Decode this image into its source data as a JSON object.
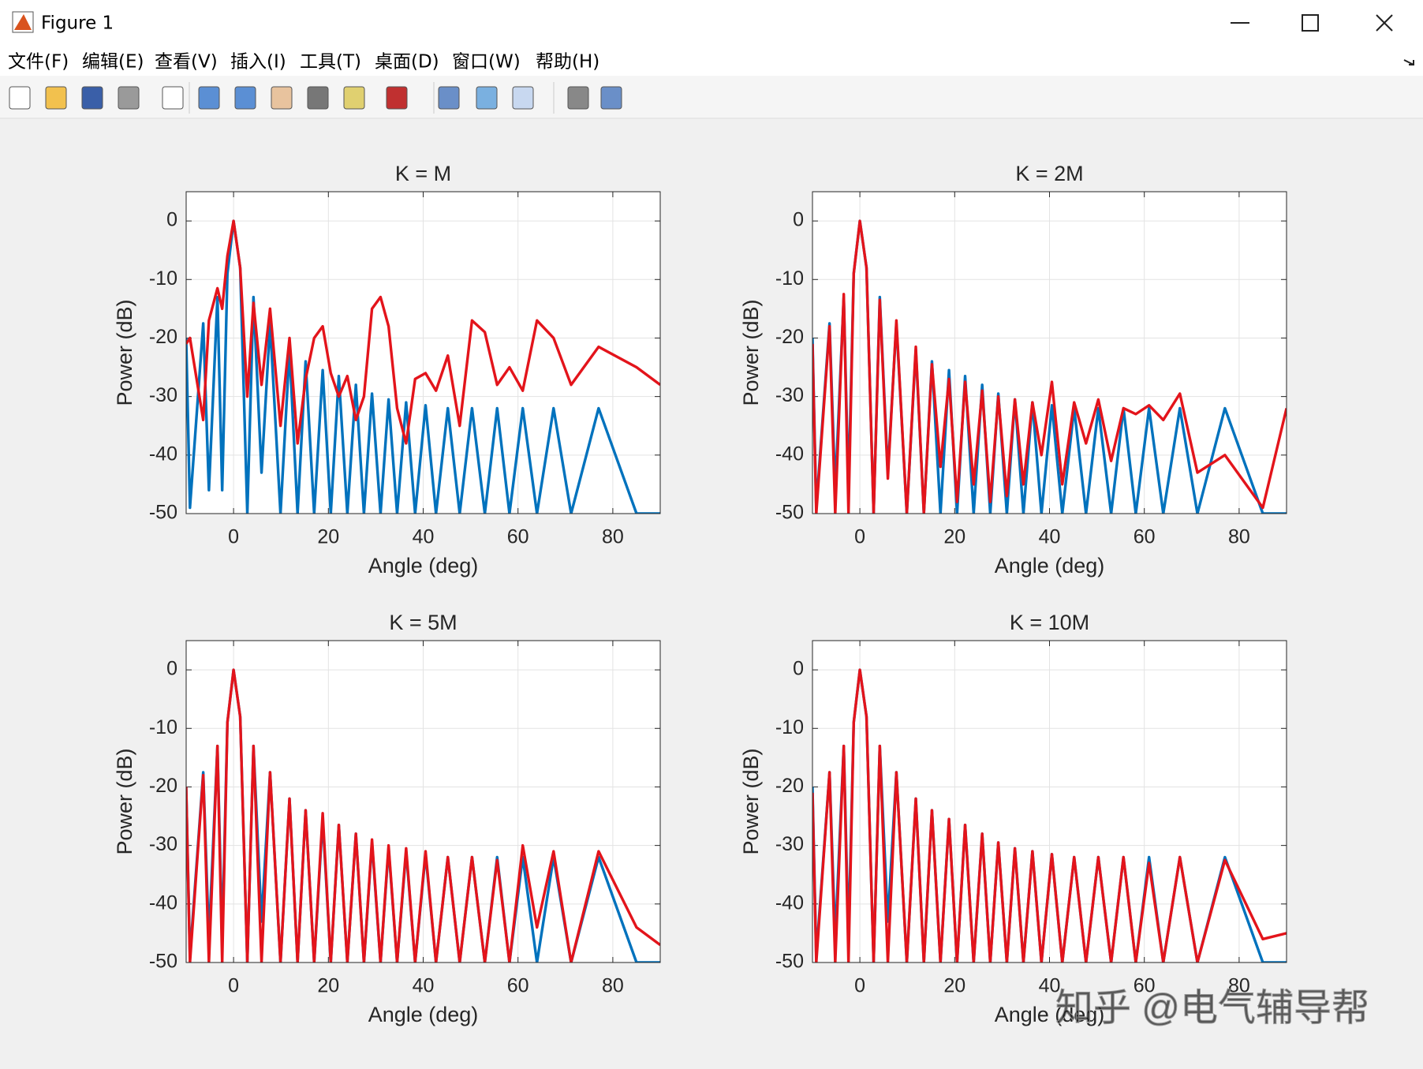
{
  "window": {
    "title": "Figure 1",
    "menu": [
      "文件(F)",
      "编辑(E)",
      "查看(V)",
      "插入(I)",
      "工具(T)",
      "桌面(D)",
      "窗口(W)",
      "帮助(H)"
    ]
  },
  "chart_data": [
    {
      "type": "line",
      "title": "K = M",
      "xlabel": "Angle (deg)",
      "ylabel": "Power (dB)",
      "x": [
        -10,
        -9.2,
        -6.4,
        -5.2,
        -3.4,
        -2.4,
        -1.3,
        0,
        1.4,
        2.9,
        4.2,
        5.9,
        7.7,
        9.9,
        11.8,
        13.5,
        15.2,
        17,
        18.8,
        20.5,
        22.2,
        24,
        25.8,
        27.5,
        29.2,
        31,
        32.7,
        34.5,
        36.4,
        38.3,
        40.5,
        42.7,
        45.2,
        47.7,
        50.3,
        53,
        55.6,
        58.2,
        61,
        64,
        67.5,
        71.2,
        77,
        85,
        90
      ],
      "xlim": [
        -10,
        90
      ],
      "xticks": [
        0,
        20,
        40,
        60,
        80
      ],
      "ylim": [
        -50,
        5
      ],
      "yticks": [
        -50,
        -40,
        -30,
        -20,
        -10,
        0
      ],
      "grid": true,
      "series": [
        {
          "color": "#0072bd",
          "values": [
            -20,
            -49,
            -17.5,
            -46,
            -13,
            -46,
            -9,
            0,
            -8,
            -50,
            -13,
            -43,
            -17.5,
            -50,
            -22,
            -50,
            -24,
            -50,
            -25.5,
            -50,
            -26.5,
            -50,
            -28,
            -50,
            -29.5,
            -50,
            -30.5,
            -50,
            -31,
            -50,
            -31.5,
            -50,
            -32,
            -50,
            -32,
            -50,
            -32,
            -50,
            -32,
            -50,
            -32,
            -50,
            -32,
            -50,
            -50
          ]
        },
        {
          "color": "#e3141b",
          "values": [
            -21,
            -20,
            -34,
            -17,
            -11.5,
            -15,
            -6,
            0,
            -8,
            -30,
            -14,
            -28,
            -15,
            -35,
            -20,
            -38,
            -27,
            -20,
            -18,
            -26,
            -30,
            -26.5,
            -34,
            -30,
            -15,
            -13,
            -18,
            -32,
            -38,
            -27,
            -26,
            -29,
            -23,
            -35,
            -17,
            -19,
            -28,
            -25,
            -29,
            -17,
            -20,
            -28,
            -21.5,
            -25,
            -28
          ]
        }
      ]
    },
    {
      "type": "line",
      "title": "K = 2M",
      "xlabel": "Angle (deg)",
      "ylabel": "Power (dB)",
      "x": [
        -10,
        -9.2,
        -6.4,
        -5.2,
        -3.4,
        -2.4,
        -1.3,
        0,
        1.4,
        2.9,
        4.2,
        5.9,
        7.7,
        9.9,
        11.8,
        13.5,
        15.2,
        17,
        18.8,
        20.5,
        22.2,
        24,
        25.8,
        27.5,
        29.2,
        31,
        32.7,
        34.5,
        36.4,
        38.3,
        40.5,
        42.7,
        45.2,
        47.7,
        50.3,
        53,
        55.6,
        58.2,
        61,
        64,
        67.5,
        71.2,
        77,
        85,
        90
      ],
      "xlim": [
        -10,
        90
      ],
      "xticks": [
        0,
        20,
        40,
        60,
        80
      ],
      "ylim": [
        -50,
        5
      ],
      "yticks": [
        -50,
        -40,
        -30,
        -20,
        -10,
        0
      ],
      "grid": true,
      "series": [
        {
          "color": "#0072bd",
          "values": [
            -20,
            -49,
            -17.5,
            -46,
            -13,
            -46,
            -9,
            0,
            -8,
            -50,
            -13,
            -43,
            -17.5,
            -50,
            -22,
            -50,
            -24,
            -50,
            -25.5,
            -50,
            -26.5,
            -50,
            -28,
            -50,
            -29.5,
            -50,
            -30.5,
            -50,
            -31,
            -50,
            -31.5,
            -50,
            -32,
            -50,
            -32,
            -50,
            -32,
            -50,
            -32,
            -50,
            -32,
            -50,
            -32,
            -50,
            -50
          ]
        },
        {
          "color": "#e3141b",
          "values": [
            -21,
            -50,
            -18,
            -50,
            -12.5,
            -50,
            -9,
            0,
            -8,
            -50,
            -13.5,
            -44,
            -17,
            -50,
            -21.5,
            -50,
            -24.5,
            -42,
            -27,
            -48,
            -27.5,
            -45,
            -29,
            -48,
            -30,
            -47,
            -30.5,
            -45,
            -31,
            -40,
            -27.5,
            -45,
            -31,
            -38,
            -30.5,
            -41,
            -32,
            -33,
            -31.5,
            -34,
            -29.5,
            -43,
            -40,
            -49,
            -32
          ]
        }
      ]
    },
    {
      "type": "line",
      "title": "K = 5M",
      "xlabel": "Angle (deg)",
      "ylabel": "Power (dB)",
      "x": [
        -10,
        -9.2,
        -6.4,
        -5.2,
        -3.4,
        -2.4,
        -1.3,
        0,
        1.4,
        2.9,
        4.2,
        5.9,
        7.7,
        9.9,
        11.8,
        13.5,
        15.2,
        17,
        18.8,
        20.5,
        22.2,
        24,
        25.8,
        27.5,
        29.2,
        31,
        32.7,
        34.5,
        36.4,
        38.3,
        40.5,
        42.7,
        45.2,
        47.7,
        50.3,
        53,
        55.6,
        58.2,
        61,
        64,
        67.5,
        71.2,
        77,
        85,
        90
      ],
      "xlim": [
        -10,
        90
      ],
      "xticks": [
        0,
        20,
        40,
        60,
        80
      ],
      "ylim": [
        -50,
        5
      ],
      "yticks": [
        -50,
        -40,
        -30,
        -20,
        -10,
        0
      ],
      "grid": true,
      "series": [
        {
          "color": "#0072bd",
          "values": [
            -20,
            -49,
            -17.5,
            -46,
            -13,
            -46,
            -9,
            0,
            -8,
            -50,
            -13,
            -43,
            -17.5,
            -50,
            -22,
            -50,
            -24,
            -50,
            -25.5,
            -50,
            -26.5,
            -50,
            -28,
            -50,
            -29.5,
            -50,
            -30.5,
            -50,
            -31,
            -50,
            -31.5,
            -50,
            -32,
            -50,
            -32,
            -50,
            -32,
            -50,
            -32,
            -50,
            -32,
            -50,
            -32,
            -50,
            -50
          ]
        },
        {
          "color": "#e3141b",
          "values": [
            -20,
            -50,
            -18,
            -50,
            -13,
            -50,
            -9,
            0,
            -8,
            -50,
            -13,
            -50,
            -17.5,
            -50,
            -22,
            -50,
            -24,
            -50,
            -24.5,
            -50,
            -26.5,
            -50,
            -28,
            -50,
            -29,
            -50,
            -30,
            -50,
            -30.5,
            -50,
            -31,
            -50,
            -32,
            -50,
            -32,
            -50,
            -32.5,
            -50,
            -30,
            -44,
            -31,
            -50,
            -31,
            -44,
            -47
          ]
        }
      ]
    },
    {
      "type": "line",
      "title": "K = 10M",
      "xlabel": "Angle (deg)",
      "ylabel": "Power (dB)",
      "x": [
        -10,
        -9.2,
        -6.4,
        -5.2,
        -3.4,
        -2.4,
        -1.3,
        0,
        1.4,
        2.9,
        4.2,
        5.9,
        7.7,
        9.9,
        11.8,
        13.5,
        15.2,
        17,
        18.8,
        20.5,
        22.2,
        24,
        25.8,
        27.5,
        29.2,
        31,
        32.7,
        34.5,
        36.4,
        38.3,
        40.5,
        42.7,
        45.2,
        47.7,
        50.3,
        53,
        55.6,
        58.2,
        61,
        64,
        67.5,
        71.2,
        77,
        85,
        90
      ],
      "xlim": [
        -10,
        90
      ],
      "xticks": [
        0,
        20,
        40,
        60,
        80
      ],
      "ylim": [
        -50,
        5
      ],
      "yticks": [
        -50,
        -40,
        -30,
        -20,
        -10,
        0
      ],
      "grid": true,
      "series": [
        {
          "color": "#0072bd",
          "values": [
            -20,
            -49,
            -17.5,
            -46,
            -13,
            -46,
            -9,
            0,
            -8,
            -50,
            -13,
            -43,
            -17.5,
            -50,
            -22,
            -50,
            -24,
            -50,
            -25.5,
            -50,
            -26.5,
            -50,
            -28,
            -50,
            -29.5,
            -50,
            -30.5,
            -50,
            -31,
            -50,
            -31.5,
            -50,
            -32,
            -50,
            -32,
            -50,
            -32,
            -50,
            -32,
            -50,
            -32,
            -50,
            -32,
            -50,
            -50
          ]
        },
        {
          "color": "#e3141b",
          "values": [
            -21,
            -50,
            -17.5,
            -50,
            -13,
            -50,
            -9,
            0,
            -8,
            -50,
            -13,
            -50,
            -17.5,
            -50,
            -22,
            -50,
            -24,
            -50,
            -25.5,
            -50,
            -26.5,
            -50,
            -28,
            -50,
            -29.5,
            -50,
            -30.5,
            -50,
            -31,
            -50,
            -31.5,
            -50,
            -32,
            -50,
            -32,
            -50,
            -32,
            -50,
            -33,
            -50,
            -32,
            -50,
            -32.5,
            -46,
            -45
          ]
        }
      ]
    }
  ],
  "watermark": "知乎 @电气辅导帮"
}
